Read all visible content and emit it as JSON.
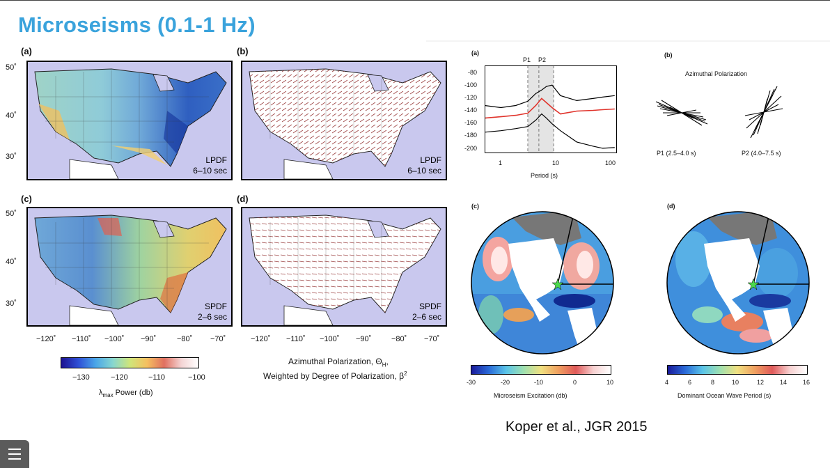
{
  "slide": {
    "title": "Microseisms (0.1-1 Hz)",
    "citation": "Koper et al., JGR 2015"
  },
  "left_figure": {
    "panels": [
      {
        "label": "(a)",
        "mode": "LPDF",
        "band": "6–10 sec"
      },
      {
        "label": "(b)",
        "mode": "LPDF",
        "band": "6–10 sec"
      },
      {
        "label": "(c)",
        "mode": "SPDF",
        "band": "2–6 sec"
      },
      {
        "label": "(d)",
        "mode": "SPDF",
        "band": "2–6 sec"
      }
    ],
    "lat_ticks": [
      "50˚",
      "40˚",
      "30˚"
    ],
    "lon_ticks": [
      "−120˚",
      "−110˚",
      "−100˚",
      "−90˚",
      "−80˚",
      "−70˚"
    ],
    "colorbar": {
      "ticks": [
        "−130",
        "−120",
        "−110",
        "−100"
      ],
      "label_pre": "λ",
      "label_sub": "max",
      "label_post": " Power (db)"
    },
    "polarization_caption_1": "Azimuthal Polarization, Θ",
    "polarization_caption_1_sub": "H",
    "polarization_caption_1_end": ",",
    "polarization_caption_2": "Weighted by Degree of Polarization, β",
    "polarization_caption_2_sup": "2"
  },
  "right_figure": {
    "panel_a": {
      "label": "(a)",
      "markers": [
        "P1",
        "P2"
      ],
      "y_ticks": [
        "-80",
        "-100",
        "-120",
        "-140",
        "-160",
        "-180",
        "-200"
      ],
      "x_ticks": [
        "1",
        "10",
        "100"
      ],
      "xlabel": "Period (s)"
    },
    "panel_b": {
      "label": "(b)",
      "title": "Azimuthal Polarization",
      "rose1_label": "P1 (2.5–4.0 s)",
      "rose2_label": "P2 (4.0–7.5 s)"
    },
    "panel_c": {
      "label": "(c)",
      "colorbar_ticks": [
        "-30",
        "-20",
        "-10",
        "0",
        "10"
      ],
      "colorbar_label": "Microseism Excitation (db)"
    },
    "panel_d": {
      "label": "(d)",
      "colorbar_ticks": [
        "4",
        "6",
        "8",
        "10",
        "12",
        "14",
        "16"
      ],
      "colorbar_label": "Dominant Ocean Wave Period (s)"
    }
  },
  "chart_data": {
    "type": "line",
    "x": [
      0.4,
      0.8,
      1.5,
      2.5,
      3.5,
      4.5,
      5.5,
      7,
      10,
      20,
      40,
      60,
      100
    ],
    "xscale": "log",
    "xlim": [
      0.4,
      110
    ],
    "ylim": [
      -200,
      -75
    ],
    "series": [
      {
        "values": [
          -132,
          -135,
          -132,
          -126,
          -115,
          -110,
          -105,
          -103,
          -118,
          -125,
          -122,
          -120,
          -118
        ]
      },
      {
        "values": [
          -150,
          -148,
          -146,
          -143,
          -132,
          -122,
          -128,
          -135,
          -144,
          -140,
          -139,
          -138,
          -137
        ]
      },
      {
        "values": [
          -170,
          -168,
          -165,
          -162,
          -153,
          -144,
          -150,
          -158,
          -168,
          -184,
          -190,
          -193,
          -192
        ]
      }
    ],
    "shaded_ranges": [
      [
        2.5,
        7.5
      ]
    ],
    "vlines": [
      2.5,
      4.0,
      7.5
    ]
  },
  "colors": {
    "title": "#3aa3dc",
    "map_background": "#c9c8ee",
    "polarization_sticks": "#a04a4a",
    "median_line": "#e0342c"
  }
}
